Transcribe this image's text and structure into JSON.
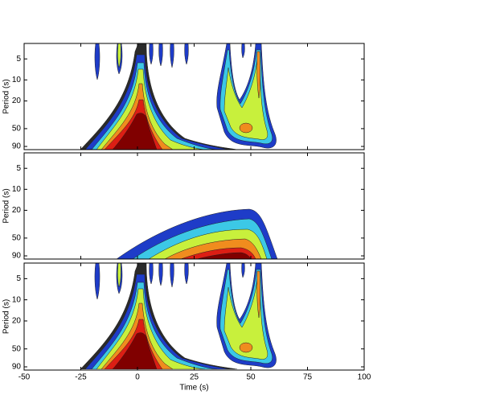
{
  "chart_data": [
    {
      "type": "contour",
      "ylabel": "Period (s)",
      "xlim": [
        -50,
        100
      ],
      "ylim": [
        3,
        100
      ],
      "yticks": [
        5,
        10,
        20,
        50,
        90
      ],
      "yscale": "log",
      "yinverted": true
    },
    {
      "type": "contour",
      "ylabel": "Period (s)",
      "xlim": [
        -50,
        100
      ],
      "ylim": [
        3,
        100
      ],
      "yticks": [
        5,
        10,
        20,
        50,
        90
      ],
      "yscale": "log",
      "yinverted": true
    },
    {
      "type": "contour",
      "ylabel": "Period (s)",
      "xlabel": "Time (s)",
      "xlim": [
        -50,
        100
      ],
      "ylim": [
        3,
        100
      ],
      "yticks": [
        5,
        10,
        20,
        50,
        90
      ],
      "xticks": [
        -50,
        -25,
        0,
        25,
        50,
        75,
        100
      ],
      "yscale": "log",
      "yinverted": true
    }
  ]
}
